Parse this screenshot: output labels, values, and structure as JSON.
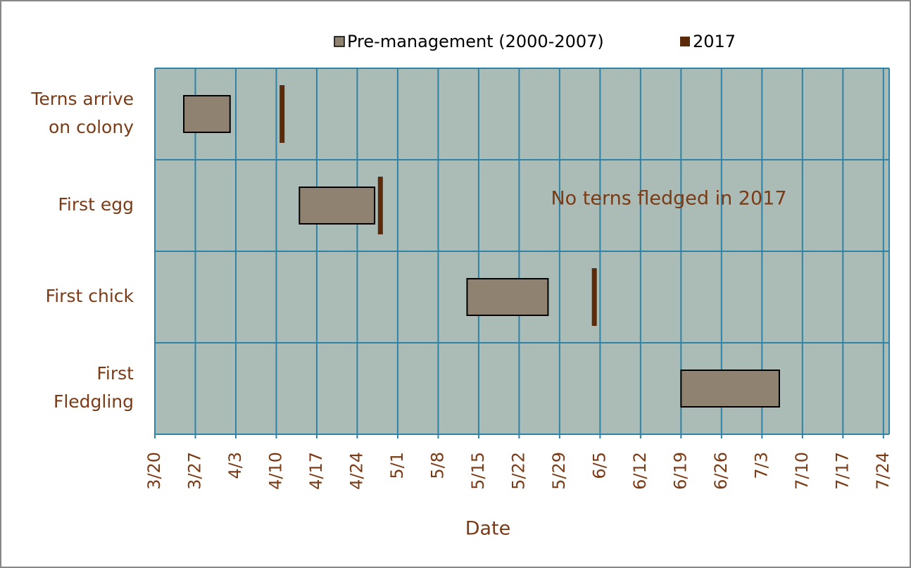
{
  "chart_data": {
    "type": "gantt",
    "categories": [
      [
        "Terns arrive",
        "on colony"
      ],
      [
        "First egg"
      ],
      [
        "First chick"
      ],
      [
        "First",
        "Fledgling"
      ]
    ],
    "series": [
      {
        "name": "Pre-management (2000-2007)",
        "color": "#8f8270",
        "start": [
          84,
          104,
          133,
          170
        ],
        "end": [
          92,
          117,
          147,
          187
        ]
      },
      {
        "name": "2017",
        "color": "#5a2a0a",
        "values": [
          101,
          118,
          155,
          null
        ]
      }
    ],
    "xlabel": "Date",
    "annotation": "No terns fledged in 2017",
    "xlim": [
      79,
      206
    ],
    "xticks": [
      {
        "value": 79,
        "label": "3/20"
      },
      {
        "value": 86,
        "label": "3/27"
      },
      {
        "value": 93,
        "label": "4/3"
      },
      {
        "value": 100,
        "label": "4/10"
      },
      {
        "value": 107,
        "label": "4/17"
      },
      {
        "value": 114,
        "label": "4/24"
      },
      {
        "value": 121,
        "label": "5/1"
      },
      {
        "value": 128,
        "label": "5/8"
      },
      {
        "value": 135,
        "label": "5/15"
      },
      {
        "value": 142,
        "label": "5/22"
      },
      {
        "value": 149,
        "label": "5/29"
      },
      {
        "value": 156,
        "label": "6/5"
      },
      {
        "value": 163,
        "label": "6/12"
      },
      {
        "value": 170,
        "label": "6/19"
      },
      {
        "value": 177,
        "label": "6/26"
      },
      {
        "value": 184,
        "label": "7/3"
      },
      {
        "value": 191,
        "label": "7/10"
      },
      {
        "value": 198,
        "label": "7/17"
      },
      {
        "value": 205,
        "label": "7/24"
      }
    ],
    "grid": true,
    "legend": "top"
  }
}
